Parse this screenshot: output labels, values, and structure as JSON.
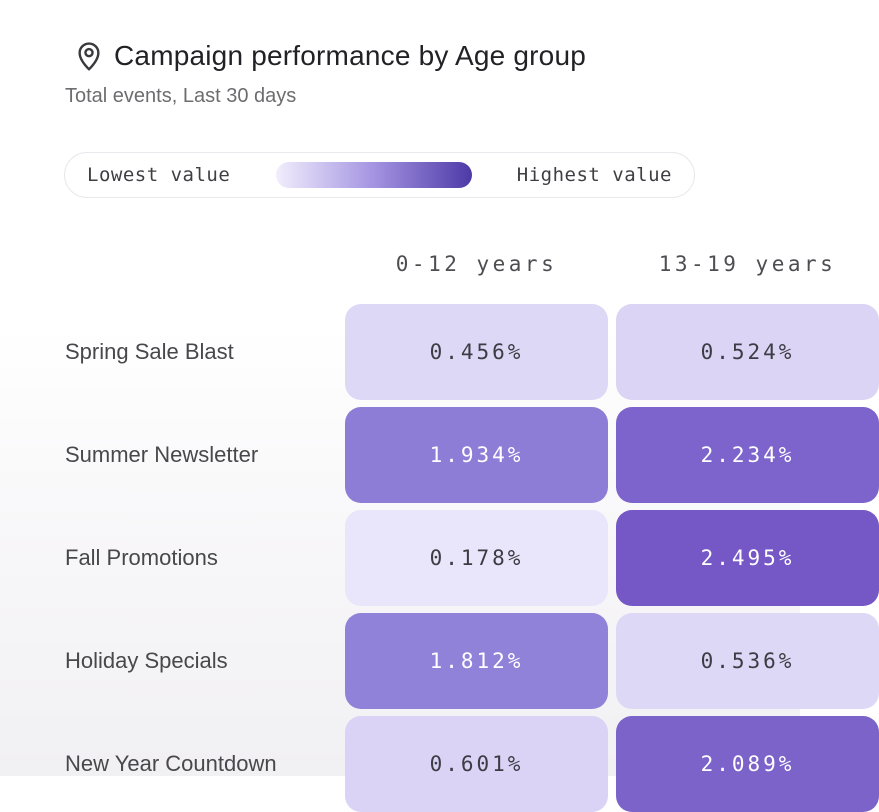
{
  "header": {
    "title": "Campaign performance by Age group",
    "subtitle": "Total events, Last 30 days",
    "icon": "location-pin-icon",
    "title_color": "#222226"
  },
  "legend": {
    "low_label": "Lowest value",
    "high_label": "Highest value",
    "gradient_colors": [
      "#f1eefc",
      "#a797e3",
      "#4e3aa7"
    ]
  },
  "chart_data": {
    "type": "heatmap",
    "title": "Campaign performance by Age group",
    "subtitle": "Total events, Last 30 days",
    "columns": [
      "0-12 years",
      "13-19 years"
    ],
    "rows": [
      "Spring Sale Blast",
      "Summer Newsletter",
      "Fall Promotions",
      "Holiday Specials",
      "New Year Countdown"
    ],
    "values": [
      [
        0.456,
        0.524
      ],
      [
        1.934,
        2.234
      ],
      [
        0.178,
        2.495
      ],
      [
        1.812,
        0.536
      ],
      [
        0.601,
        2.089
      ]
    ],
    "value_format": "percent",
    "legend_position": "top",
    "cells": [
      [
        {
          "label": "0.456%",
          "bg": "#ded8f7",
          "fg": "#3c3c44"
        },
        {
          "label": "0.524%",
          "bg": "#dbd4f5",
          "fg": "#3c3c44"
        }
      ],
      [
        {
          "label": "1.934%",
          "bg": "#8e7dd6",
          "fg": "#ffffff"
        },
        {
          "label": "2.234%",
          "bg": "#7d64cc",
          "fg": "#ffffff"
        }
      ],
      [
        {
          "label": "0.178%",
          "bg": "#e9e5fa",
          "fg": "#3c3c44"
        },
        {
          "label": "2.495%",
          "bg": "#7557c5",
          "fg": "#ffffff"
        }
      ],
      [
        {
          "label": "1.812%",
          "bg": "#9182d9",
          "fg": "#ffffff"
        },
        {
          "label": "0.536%",
          "bg": "#ded8f7",
          "fg": "#3c3c44"
        }
      ],
      [
        {
          "label": "0.601%",
          "bg": "#dad3f5",
          "fg": "#3c3c44"
        },
        {
          "label": "2.089%",
          "bg": "#7b63c9",
          "fg": "#ffffff"
        }
      ]
    ]
  }
}
